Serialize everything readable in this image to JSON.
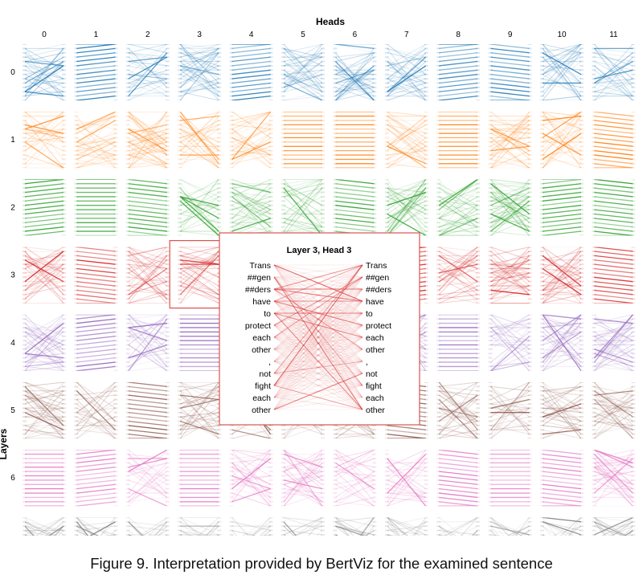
{
  "chart_data": {
    "type": "attention-grid",
    "x_title": "Heads",
    "y_title": "Layers",
    "head_labels": [
      "0",
      "1",
      "2",
      "3",
      "4",
      "5",
      "6",
      "7",
      "8",
      "9",
      "10",
      "11"
    ],
    "layer_labels": [
      "0",
      "1",
      "2",
      "3",
      "4",
      "5",
      "6"
    ],
    "layer_colors": [
      "#1f77b4",
      "#ff7f0e",
      "#2ca02c",
      "#d62728",
      "#9467bd",
      "#8c564b",
      "#e377c2",
      "#7f7f7f"
    ],
    "selected": {
      "layer": 3,
      "head": 3
    },
    "detail": {
      "title": "Layer 3, Head 3",
      "left_tokens": [
        "Trans",
        "##gen",
        "##ders",
        "have",
        "to",
        "protect",
        "each",
        "other",
        ",",
        "not",
        "fight",
        "each",
        "other"
      ],
      "right_tokens": [
        "Trans",
        "##gen",
        "##ders",
        "have",
        "to",
        "protect",
        "each",
        "other",
        ",",
        "not",
        "fight",
        "each",
        "other"
      ]
    }
  },
  "caption": "Figure 9. Interpretation provided by BertViz for the examined sentence"
}
